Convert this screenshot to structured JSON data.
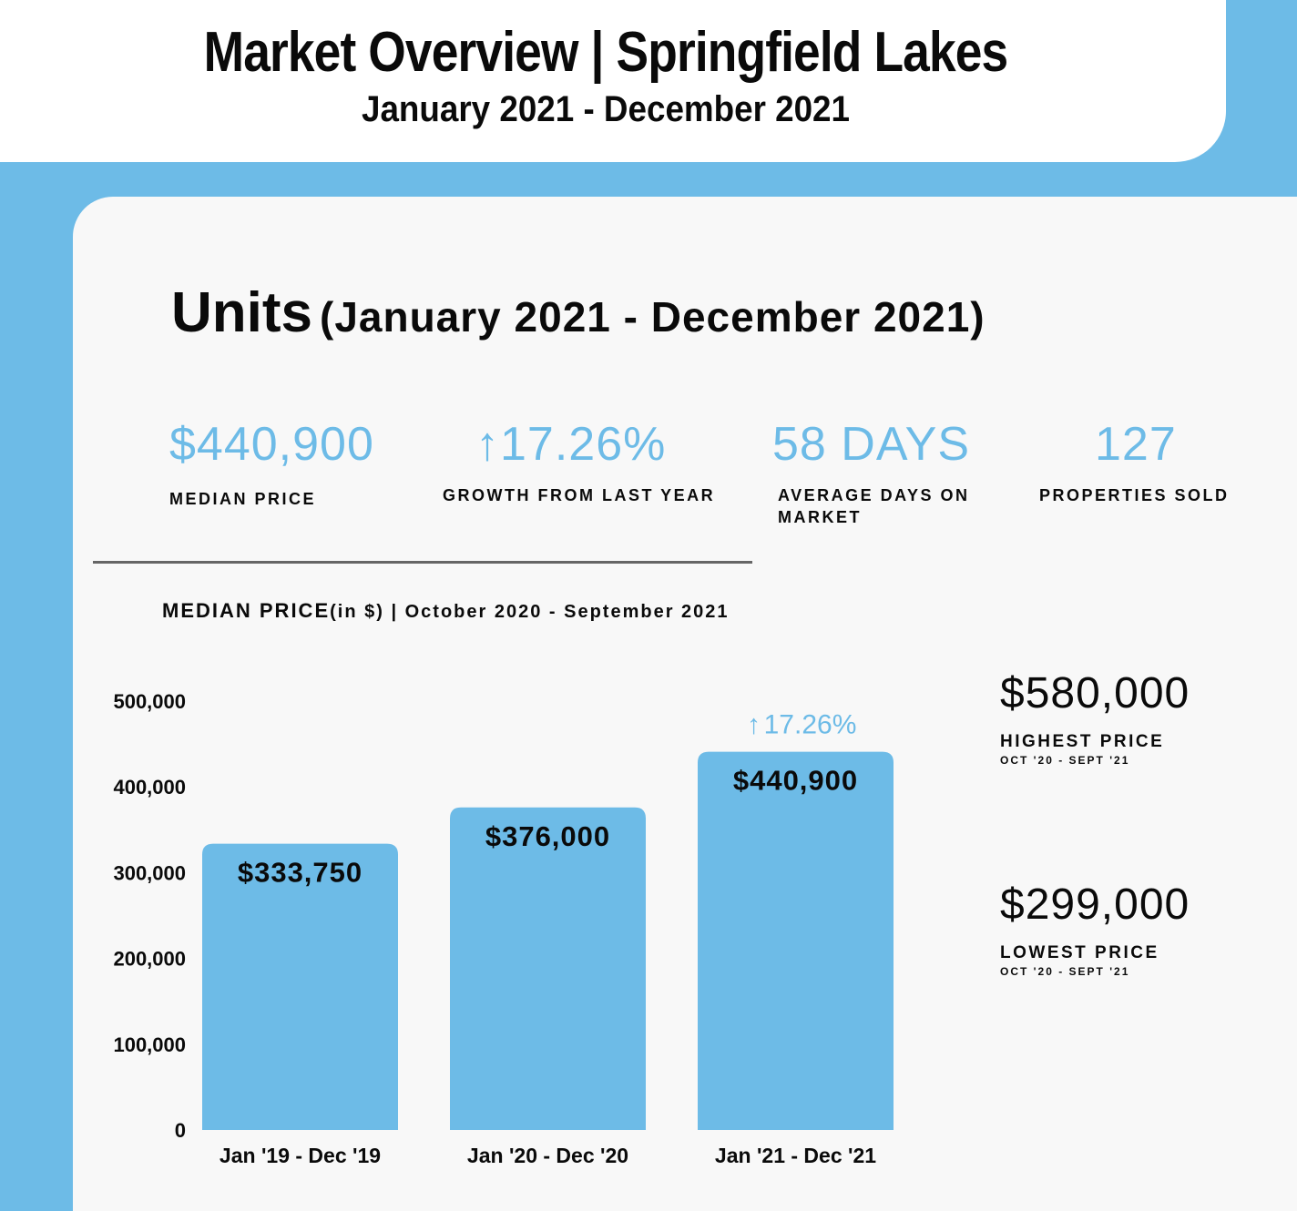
{
  "header": {
    "title": "Market Overview | Springfield Lakes",
    "subtitle": "January 2021 - December 2021"
  },
  "section": {
    "title": "Units",
    "period": "(January 2021 - December 2021)"
  },
  "stats": [
    {
      "value": "$440,900",
      "label": "MEDIAN PRICE"
    },
    {
      "value": "17.26%",
      "label": "GROWTH FROM LAST YEAR"
    },
    {
      "value": "58 DAYS",
      "label": "AVERAGE DAYS ON MARKET"
    },
    {
      "value": "127",
      "label": "PROPERTIES SOLD"
    }
  ],
  "colors": {
    "accent": "#6dbbe7",
    "text": "#0a0a0a",
    "panel": "#f8f8f8"
  },
  "chart_title": {
    "main": "MEDIAN PRICE",
    "unit": "(in $)",
    "period": " | October 2020 - September 2021"
  },
  "chart_data": {
    "type": "bar",
    "categories": [
      "Jan '19 - Dec '19",
      "Jan '20 - Dec '20",
      "Jan '21 - Dec '21"
    ],
    "values": [
      333750,
      376000,
      440900
    ],
    "value_labels": [
      "$333,750",
      "$376,000",
      "$440,900"
    ],
    "annotation": {
      "text": "17.26%",
      "category_index": 2,
      "icon": "up-arrow-icon"
    },
    "yticks": [
      "0",
      "100,000",
      "200,000",
      "300,000",
      "400,000",
      "500,000"
    ],
    "ytick_values": [
      0,
      100000,
      200000,
      300000,
      400000,
      500000
    ],
    "ylim": [
      0,
      500000
    ],
    "xlabel": "",
    "ylabel": "",
    "grid": false,
    "legend": "none",
    "bar_color": "#6dbbe7"
  },
  "aside": {
    "highest": {
      "value": "$580,000",
      "label": "HIGHEST PRICE",
      "period": "OCT '20 - SEPT '21"
    },
    "lowest": {
      "value": "$299,000",
      "label": "LOWEST PRICE",
      "period": "OCT '20 - SEPT '21"
    }
  }
}
